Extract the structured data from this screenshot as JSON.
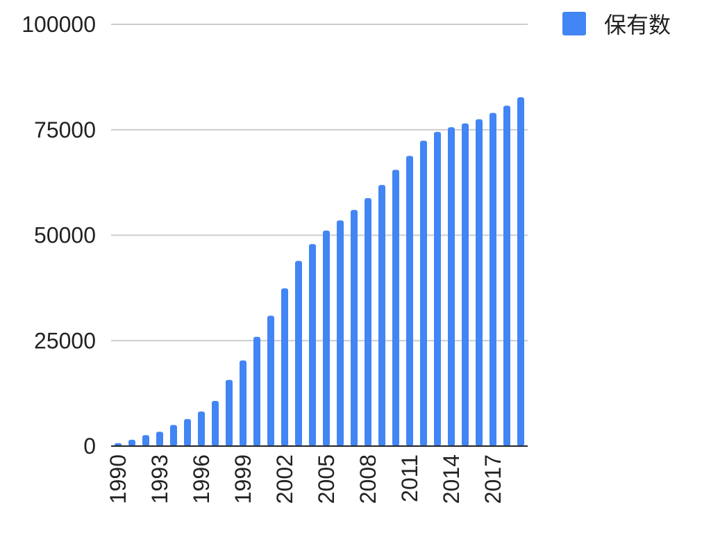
{
  "chart_data": {
    "type": "bar",
    "categories": [
      "1990",
      "1991",
      "1992",
      "1993",
      "1994",
      "1995",
      "1996",
      "1997",
      "1998",
      "1999",
      "2000",
      "2001",
      "2002",
      "2003",
      "2004",
      "2005",
      "2006",
      "2007",
      "2008",
      "2009",
      "2010",
      "2011",
      "2012",
      "2013",
      "2014",
      "2015",
      "2016",
      "2017",
      "2018",
      "2019"
    ],
    "series": [
      {
        "name": "保有数",
        "color": "#4285f4",
        "values": [
          700,
          1500,
          2600,
          3400,
          5000,
          6400,
          8200,
          10700,
          15700,
          20300,
          25900,
          30900,
          37400,
          43900,
          47900,
          51100,
          53500,
          56000,
          58800,
          61900,
          65500,
          68800,
          72400,
          74500,
          75600,
          76500,
          77500,
          79000,
          80700,
          82700
        ]
      }
    ],
    "x_tick_labels": [
      "1990",
      "1993",
      "1996",
      "1999",
      "2002",
      "2005",
      "2008",
      "2011",
      "2014",
      "2017"
    ],
    "y_tick_labels": [
      "0",
      "25000",
      "50000",
      "75000",
      "100000"
    ],
    "ylim": [
      0,
      100000
    ],
    "grid": true,
    "legend_position": "top-right",
    "title": "",
    "xlabel": "",
    "ylabel": ""
  }
}
